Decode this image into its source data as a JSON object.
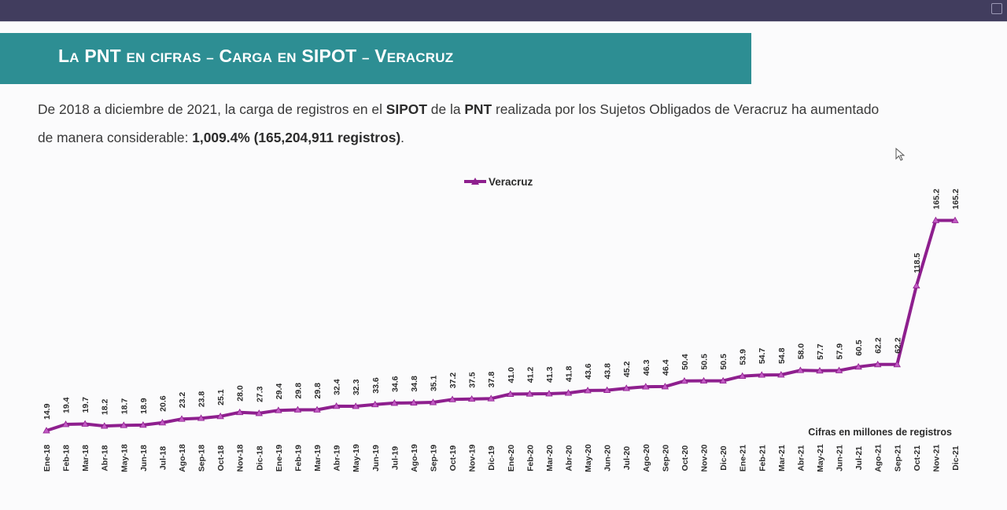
{
  "window": {
    "restore_icon": "window-restore-icon"
  },
  "slide": {
    "title": "La PNT en cifras – Carga en SIPOT – Veracruz",
    "paragraph": {
      "t1": "De 2018 a diciembre de 2021, la carga de registros en el ",
      "b1": "SIPOT",
      "t2": " de la ",
      "b2": "PNT",
      "t3": " realizada por los Sujetos Obligados de Veracruz ha aumentado",
      "t4": "de manera considerable: ",
      "b3": "1,009.4% (165,204,911 registros)",
      "t5": "."
    },
    "note": "Cifras en millones de registros"
  },
  "colors": {
    "title_bar": "#2d8e93",
    "series": "#8e1f8e",
    "topbar": "#413d5e"
  },
  "chart_data": {
    "type": "line",
    "legend_position": "top-center",
    "series": [
      {
        "name": "Veracruz",
        "marker": "triangle",
        "values": [
          14.9,
          19.4,
          19.7,
          18.2,
          18.7,
          18.9,
          20.6,
          23.2,
          23.8,
          25.1,
          28.0,
          27.3,
          29.4,
          29.8,
          29.8,
          32.4,
          32.3,
          33.6,
          34.6,
          34.8,
          35.1,
          37.2,
          37.5,
          37.8,
          41.0,
          41.2,
          41.3,
          41.8,
          43.6,
          43.8,
          45.2,
          46.3,
          46.4,
          50.4,
          50.5,
          50.5,
          53.9,
          54.7,
          54.8,
          58.0,
          57.7,
          57.9,
          60.5,
          62.2,
          62.2,
          118.5,
          165.2,
          165.2
        ],
        "labels": [
          "14.9",
          "19.4",
          "19.7",
          "18.2",
          "18.7",
          "18.9",
          "20.6",
          "23.2",
          "23.8",
          "25.1",
          "28.0",
          "27.3",
          "29.4",
          "29.8",
          "29.8",
          "32.4",
          "32.3",
          "33.6",
          "34.6",
          "34.8",
          "35.1",
          "37.2",
          "37.5",
          "37.8",
          "41.0",
          "41.2",
          "41.3",
          "41.8",
          "43.6",
          "43.8",
          "45.2",
          "46.3",
          "46.4",
          "50.4",
          "50.5",
          "50.5",
          "53.9",
          "54.7",
          "54.8",
          "58.0",
          "57.7",
          "57.9",
          "60.5",
          "62.2",
          "62.2",
          "118.5",
          "165.2",
          "165.2"
        ]
      }
    ],
    "categories": [
      "Ene-18",
      "Feb-18",
      "Mar-18",
      "Abr-18",
      "May-18",
      "Jun-18",
      "Jul-18",
      "Ago-18",
      "Sep-18",
      "Oct-18",
      "Nov-18",
      "Dic-18",
      "Ene-19",
      "Feb-19",
      "Mar-19",
      "Abr-19",
      "May-19",
      "Jun-19",
      "Jul-19",
      "Ago-19",
      "Sep-19",
      "Oct-19",
      "Nov-19",
      "Dic-19",
      "Ene-20",
      "Feb-20",
      "Mar-20",
      "Abr-20",
      "May-20",
      "Jun-20",
      "Jul-20",
      "Ago-20",
      "Sep-20",
      "Oct-20",
      "Nov-20",
      "Dic-20",
      "Ene-21",
      "Feb-21",
      "Mar-21",
      "Abr-21",
      "May-21",
      "Jun-21",
      "Jul-21",
      "Ago-21",
      "Sep-21",
      "Oct-21",
      "Nov-21",
      "Dic-21"
    ],
    "grid": false
  }
}
